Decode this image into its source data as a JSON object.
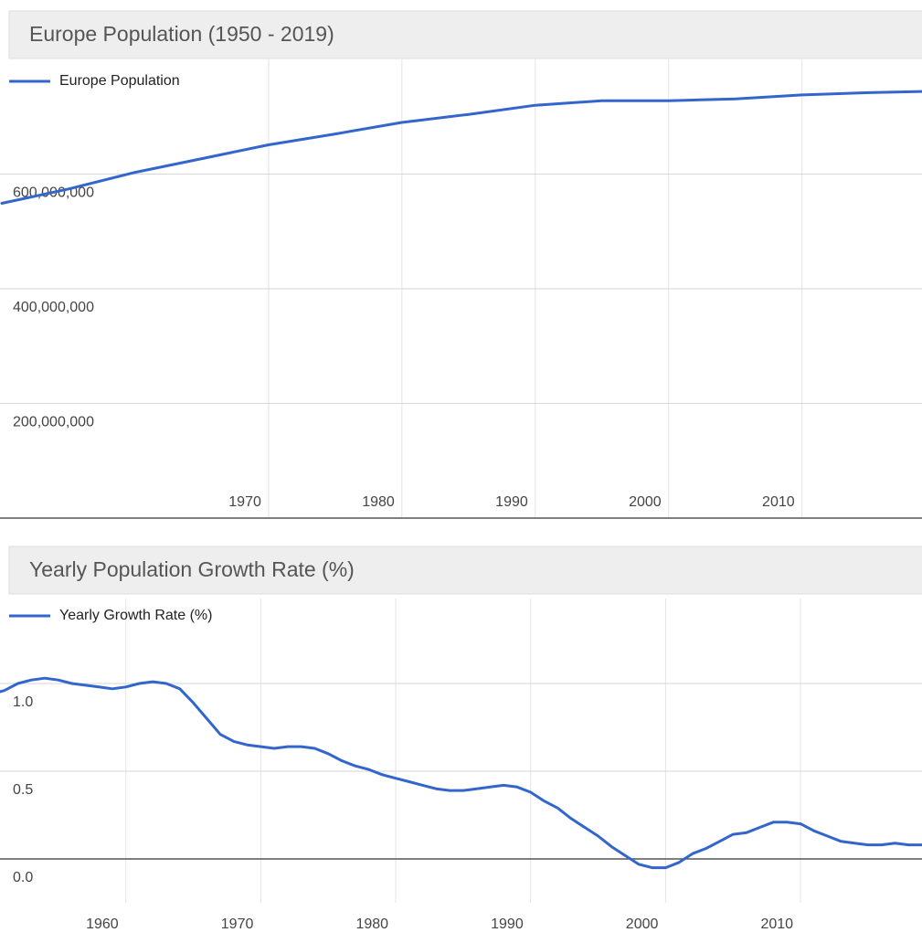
{
  "chart_data": [
    {
      "type": "line",
      "title": "Europe Population (1950 - 2019)",
      "x": [
        1950,
        1955,
        1960,
        1965,
        1970,
        1975,
        1980,
        1985,
        1990,
        1995,
        2000,
        2005,
        2010,
        2015,
        2019
      ],
      "series": [
        {
          "name": "Europe Population",
          "color": "#3366cc",
          "values": [
            549000000,
            574000000,
            603000000,
            627000000,
            651000000,
            670000000,
            690000000,
            704000000,
            720000000,
            728000000,
            728000000,
            731000000,
            738000000,
            742000000,
            744000000
          ]
        }
      ],
      "xlim": [
        1950,
        2019
      ],
      "xticks": [
        1970,
        1980,
        1990,
        2000,
        2010
      ],
      "ylim": [
        0,
        800000000
      ],
      "yticks": [
        {
          "value": 200000000,
          "label": "200,000,000"
        },
        {
          "value": 400000000,
          "label": "400,000,000"
        },
        {
          "value": 600000000,
          "label": "600,000,000"
        }
      ],
      "grid": true
    },
    {
      "type": "line",
      "title": "Yearly Population Growth Rate (%)",
      "x": [
        1950,
        1951,
        1952,
        1953,
        1954,
        1955,
        1956,
        1957,
        1958,
        1959,
        1960,
        1961,
        1962,
        1963,
        1964,
        1965,
        1966,
        1967,
        1968,
        1969,
        1970,
        1971,
        1972,
        1973,
        1974,
        1975,
        1976,
        1977,
        1978,
        1979,
        1980,
        1981,
        1982,
        1983,
        1984,
        1985,
        1986,
        1987,
        1988,
        1989,
        1990,
        1991,
        1992,
        1993,
        1994,
        1995,
        1996,
        1997,
        1998,
        1999,
        2000,
        2001,
        2002,
        2003,
        2004,
        2005,
        2006,
        2007,
        2008,
        2009,
        2010,
        2011,
        2012,
        2013,
        2014,
        2015,
        2016,
        2017,
        2018,
        2019
      ],
      "series": [
        {
          "name": "Yearly Growth Rate (%)",
          "color": "#3366cc",
          "values": [
            0.94,
            0.96,
            1.0,
            1.02,
            1.03,
            1.02,
            1.0,
            0.99,
            0.98,
            0.97,
            0.98,
            1.0,
            1.01,
            1.0,
            0.97,
            0.89,
            0.8,
            0.71,
            0.67,
            0.65,
            0.64,
            0.63,
            0.64,
            0.64,
            0.63,
            0.6,
            0.56,
            0.53,
            0.51,
            0.48,
            0.46,
            0.44,
            0.42,
            0.4,
            0.39,
            0.39,
            0.4,
            0.41,
            0.42,
            0.41,
            0.38,
            0.33,
            0.29,
            0.23,
            0.18,
            0.13,
            0.07,
            0.02,
            -0.03,
            -0.05,
            -0.05,
            -0.02,
            0.03,
            0.06,
            0.1,
            0.14,
            0.15,
            0.18,
            0.21,
            0.21,
            0.2,
            0.16,
            0.13,
            0.1,
            0.09,
            0.08,
            0.08,
            0.09,
            0.08,
            0.08
          ]
        }
      ],
      "xlim": [
        1950,
        2019
      ],
      "xticks": [
        1960,
        1970,
        1980,
        1990,
        2000,
        2010
      ],
      "ylim": [
        -0.25,
        1.5
      ],
      "yticks": [
        {
          "value": 0,
          "label": "0.0"
        },
        0.5,
        {
          "value": 1,
          "label": "1.0"
        }
      ],
      "grid": true
    }
  ]
}
